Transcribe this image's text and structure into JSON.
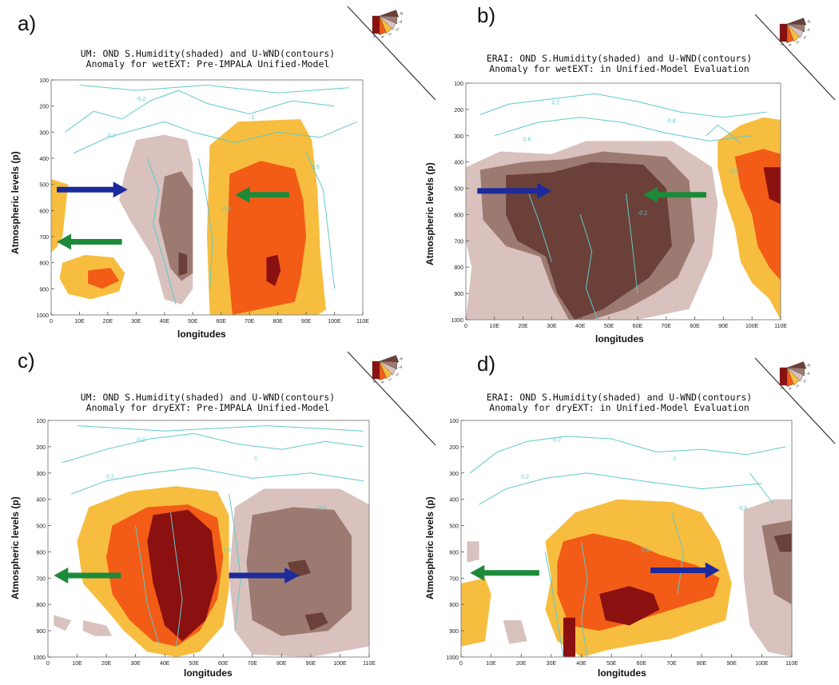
{
  "colors": {
    "brown_dark": "#6a4038",
    "brown_mid": "#9c7a72",
    "brown_light": "#d9c2bd",
    "orange_light": "#f7bd3f",
    "orange_mid": "#f25c16",
    "red_dark": "#8b1010",
    "contour": "#5fc9cc",
    "arrow_blue": "#1c2a9c",
    "arrow_green": "#1c8a3a",
    "frame": "#888888"
  },
  "chart_data": [
    {
      "type": "heatmap",
      "panel": "a)",
      "title_line1": "UM: OND S.Humidity(shaded) and U-WND(contours)",
      "title_line2": "Anomaly for wetEXT: Pre-IMPALA Unified-Model",
      "xlabel": "longitudes",
      "ylabel": "Atmospheric levels (p)",
      "xticks": [
        "0",
        "10E",
        "20E",
        "30E",
        "40E",
        "50E",
        "60E",
        "70E",
        "80E",
        "90E",
        "100E",
        "110E"
      ],
      "yticks": [
        "100",
        "200",
        "300",
        "400",
        "500",
        "600",
        "700",
        "800",
        "900",
        "1000"
      ],
      "xlim": [
        0,
        110
      ],
      "ylim": [
        1000,
        100
      ],
      "arrows": [
        {
          "color": "blue",
          "direction": "east",
          "from_lon": 2,
          "to_lon": 27,
          "level": 520
        },
        {
          "color": "green",
          "direction": "west",
          "from_lon": 84,
          "to_lon": 65,
          "level": 540
        },
        {
          "color": "green",
          "direction": "west",
          "from_lon": 25,
          "to_lon": 2,
          "level": 720
        }
      ],
      "contour_labels": [
        "-0.2",
        "-1",
        "0.2",
        "-0.8",
        "0.6"
      ]
    },
    {
      "type": "heatmap",
      "panel": "b)",
      "title_line1": "ERAI: OND S.Humidity(shaded) and U-WND(contours)",
      "title_line2": "Anomaly for wetEXT: in Unified-Model Evaluation",
      "xlabel": "longitudes",
      "ylabel": "Atmospheric levels (p)",
      "xticks": [
        "0",
        "10E",
        "20E",
        "30E",
        "40E",
        "50E",
        "60E",
        "70E",
        "80E",
        "90E",
        "100E",
        "110E"
      ],
      "yticks": [
        "100",
        "200",
        "300",
        "400",
        "500",
        "600",
        "700",
        "800",
        "900",
        "1000"
      ],
      "xlim": [
        0,
        110
      ],
      "ylim": [
        1000,
        100
      ],
      "arrows": [
        {
          "color": "blue",
          "direction": "east",
          "from_lon": 4,
          "to_lon": 30,
          "level": 510
        },
        {
          "color": "green",
          "direction": "west",
          "from_lon": 84,
          "to_lon": 62,
          "level": 525
        }
      ],
      "contour_labels": [
        "0.2",
        "-0.8",
        "0.6",
        "-0.2",
        "-1.2"
      ]
    },
    {
      "type": "heatmap",
      "panel": "c)",
      "title_line1": "UM: OND S.Humidity(shaded) and U-WND(contours)",
      "title_line2": "Anomaly for dryEXT: Pre-IMPALA Unified-Model",
      "xlabel": "longitudes",
      "ylabel": "Atmospheric levels (p)",
      "xticks": [
        "0",
        "10E",
        "20E",
        "30E",
        "40E",
        "50E",
        "60E",
        "70E",
        "80E",
        "90E",
        "100E",
        "110E"
      ],
      "yticks": [
        "100",
        "200",
        "300",
        "400",
        "500",
        "600",
        "700",
        "800",
        "900",
        "1000"
      ],
      "xlim": [
        0,
        110
      ],
      "ylim": [
        1000,
        100
      ],
      "arrows": [
        {
          "color": "green",
          "direction": "west",
          "from_lon": 25,
          "to_lon": 2,
          "level": 690
        },
        {
          "color": "blue",
          "direction": "east",
          "from_lon": 62,
          "to_lon": 86,
          "level": 690
        }
      ],
      "contour_labels": [
        "-0.2",
        "-1",
        "0.2",
        "1.6",
        "-0.6"
      ]
    },
    {
      "type": "heatmap",
      "panel": "d)",
      "title_line1": "ERAI: OND S.Humidity(shaded) and U-WND(contours)",
      "title_line2": "Anomaly for dryEXT: in Unified-Model Evaluation",
      "xlabel": "longitudes",
      "ylabel": "Atmospheric levels (p)",
      "xticks": [
        "0",
        "10E",
        "20E",
        "30E",
        "40E",
        "50E",
        "60E",
        "70E",
        "80E",
        "90E",
        "100E",
        "110E"
      ],
      "yticks": [
        "100",
        "200",
        "300",
        "400",
        "500",
        "600",
        "700",
        "800",
        "900",
        "1000"
      ],
      "xlim": [
        0,
        110
      ],
      "ylim": [
        1000,
        100
      ],
      "arrows": [
        {
          "color": "green",
          "direction": "west",
          "from_lon": 26,
          "to_lon": 3,
          "level": 680
        },
        {
          "color": "blue",
          "direction": "east",
          "from_lon": 63,
          "to_lon": 86,
          "level": 670
        }
      ],
      "contour_labels": [
        "-0.2",
        "-1",
        "0.2",
        "0.6",
        "-0.6"
      ]
    }
  ],
  "legend": {
    "labels": [
      "-6",
      "-4",
      "-2",
      "2",
      "4",
      "6"
    ]
  }
}
